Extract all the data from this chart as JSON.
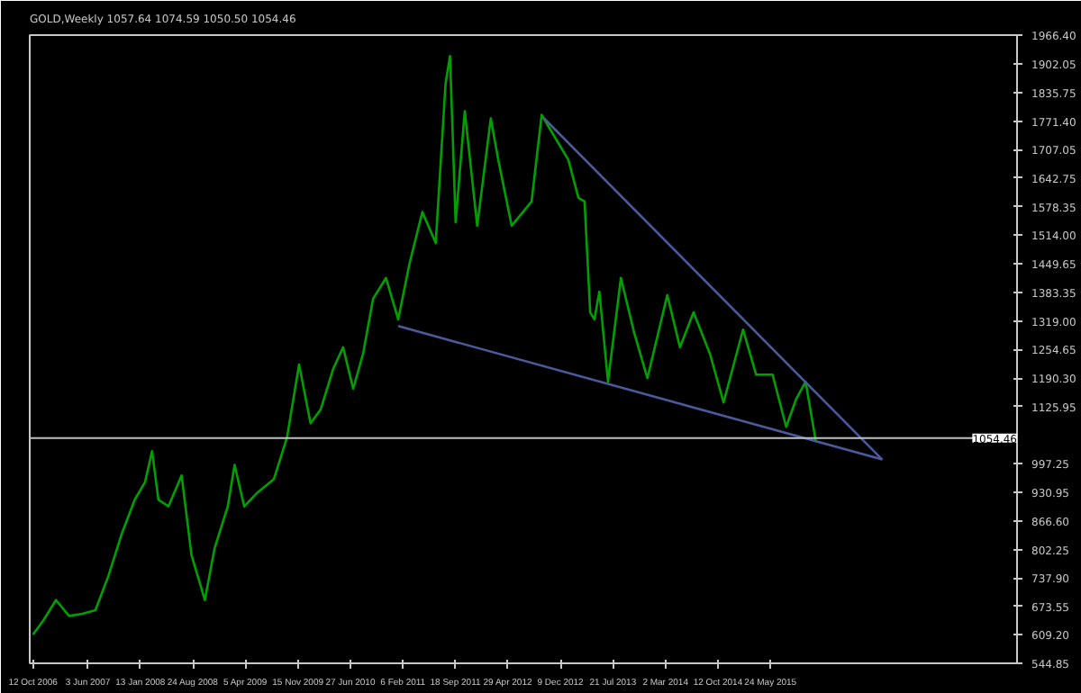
{
  "chart_data": {
    "type": "line",
    "title": "GOLD,Weekly 1057.64 1074.59 1050.50 1054.46",
    "grid": false,
    "xlim": [
      "2006-09-28",
      "2018-04-10"
    ],
    "xticks": [
      {
        "value": "2006-10-12",
        "label": "12 Oct 2006"
      },
      {
        "value": "2007-06-03",
        "label": "3 Jun 2007"
      },
      {
        "value": "2008-01-13",
        "label": "13 Jan 2008"
      },
      {
        "value": "2008-08-24",
        "label": "24 Aug 2008"
      },
      {
        "value": "2009-04-05",
        "label": "5 Apr 2009"
      },
      {
        "value": "2009-11-15",
        "label": "15 Nov 2009"
      },
      {
        "value": "2010-06-27",
        "label": "27 Jun 2010"
      },
      {
        "value": "2011-02-06",
        "label": "6 Feb 2011"
      },
      {
        "value": "2011-09-18",
        "label": "18 Sep 2011"
      },
      {
        "value": "2012-04-29",
        "label": "29 Apr 2012"
      },
      {
        "value": "2012-12-09",
        "label": "9 Dec 2012"
      },
      {
        "value": "2013-07-21",
        "label": "21 Jul 2013"
      },
      {
        "value": "2014-03-02",
        "label": "2 Mar 2014"
      },
      {
        "value": "2014-10-12",
        "label": "12 Oct 2014"
      },
      {
        "value": "2015-05-24",
        "label": "24 May 2015"
      }
    ],
    "ylim": [
      544.85,
      1966.4
    ],
    "yticks": [
      {
        "value": 544.85,
        "label": "544.85"
      },
      {
        "value": 609.2,
        "label": "609.20"
      },
      {
        "value": 673.55,
        "label": "673.55"
      },
      {
        "value": 737.9,
        "label": "737.90"
      },
      {
        "value": 802.25,
        "label": "802.25"
      },
      {
        "value": 866.6,
        "label": "866.60"
      },
      {
        "value": 930.95,
        "label": "930.95"
      },
      {
        "value": 997.25,
        "label": "997.25"
      },
      {
        "value": 1125.95,
        "label": "1125.95"
      },
      {
        "value": 1190.3,
        "label": "1190.30"
      },
      {
        "value": 1254.65,
        "label": "1254.65"
      },
      {
        "value": 1319.0,
        "label": "1319.00"
      },
      {
        "value": 1383.35,
        "label": "1383.35"
      },
      {
        "value": 1449.65,
        "label": "1449.65"
      },
      {
        "value": 1514.0,
        "label": "1514.00"
      },
      {
        "value": 1578.35,
        "label": "1578.35"
      },
      {
        "value": 1642.75,
        "label": "1642.75"
      },
      {
        "value": 1707.05,
        "label": "1707.05"
      },
      {
        "value": 1771.4,
        "label": "1771.40"
      },
      {
        "value": 1835.75,
        "label": "1835.75"
      },
      {
        "value": 1902.05,
        "label": "1902.05"
      },
      {
        "value": 1966.4,
        "label": "1966.40"
      }
    ],
    "ref_lines": [
      {
        "axis": "y",
        "value": 1054.46,
        "label": "1054.46",
        "color": "#c0c0c0"
      }
    ],
    "series": [
      {
        "color": "#00a000",
        "x": [
          "2006-10-12",
          "2006-11-24",
          "2007-01-18",
          "2007-03-15",
          "2007-05-10",
          "2007-07-05",
          "2007-08-30",
          "2007-10-25",
          "2007-12-20",
          "2008-02-02",
          "2008-03-03",
          "2008-03-30",
          "2008-05-12",
          "2008-07-07",
          "2008-08-18",
          "2008-10-14",
          "2008-11-25",
          "2009-01-20",
          "2009-02-18",
          "2009-03-31",
          "2009-05-26",
          "2009-08-05",
          "2009-09-30",
          "2009-11-20",
          "2010-01-08",
          "2010-02-20",
          "2010-04-16",
          "2010-05-27",
          "2010-07-09",
          "2010-08-20",
          "2010-10-02",
          "2010-11-26",
          "2011-01-17",
          "2011-03-06",
          "2011-04-30",
          "2011-06-26",
          "2011-08-07",
          "2011-08-26",
          "2011-09-19",
          "2011-10-28",
          "2011-12-20",
          "2012-02-16",
          "2012-03-19",
          "2012-05-15",
          "2012-08-08",
          "2012-09-20",
          "2012-11-02",
          "2013-01-12",
          "2013-02-24",
          "2013-03-22",
          "2013-04-15",
          "2013-05-03",
          "2013-05-24",
          "2013-06-30",
          "2013-08-24",
          "2013-10-20",
          "2013-12-15",
          "2014-03-10",
          "2014-05-03",
          "2014-06-30",
          "2014-09-08",
          "2014-11-05",
          "2015-01-27",
          "2015-03-24",
          "2015-06-02",
          "2015-07-30",
          "2015-09-11",
          "2015-10-21",
          "2015-12-03"
        ],
        "values": [
          610,
          641,
          688,
          652,
          657,
          665,
          743,
          837,
          915,
          955,
          1025,
          915,
          900,
          970,
          790,
          688,
          806,
          900,
          994,
          900,
          931,
          962,
          1057,
          1221,
          1088,
          1119,
          1213,
          1260,
          1166,
          1245,
          1370,
          1417,
          1323,
          1449,
          1566,
          1496,
          1857,
          1919,
          1543,
          1794,
          1535,
          1778,
          1684,
          1535,
          1590,
          1786,
          1747,
          1684,
          1598,
          1590,
          1339,
          1323,
          1386,
          1182,
          1417,
          1292,
          1190,
          1378,
          1260,
          1339,
          1245,
          1135,
          1300,
          1198,
          1198,
          1080,
          1143,
          1182,
          1049
        ]
      },
      {
        "color": "#4a5a9a",
        "x": [
          "2012-09-30",
          "2016-09-12"
        ],
        "values": [
          1778,
          1006
        ]
      },
      {
        "color": "#4a5a9a",
        "x": [
          "2011-01-17",
          "2016-09-12"
        ],
        "values": [
          1308,
          1006
        ]
      }
    ]
  }
}
